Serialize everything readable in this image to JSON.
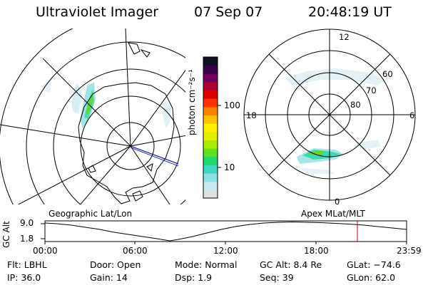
{
  "header": {
    "instrument": "Ultraviolet Imager",
    "date": "07 Sep 07",
    "time": "20:48:19 UT"
  },
  "geo_panel": {
    "label": "Geographic Lat/Lon"
  },
  "polar_panel": {
    "label": "Apex  MLat/MLT",
    "mlt_labels": {
      "top": "12",
      "left": "18",
      "right": "6",
      "bottom": "0"
    },
    "lat_labels": [
      "60",
      "70",
      "80"
    ]
  },
  "colorbar": {
    "unit_label": "photon cm⁻²s⁻¹",
    "ticks": [
      "100",
      "10"
    ],
    "colors": [
      "#e0e0e0",
      "#c8e8f0",
      "#90e0e8",
      "#40d8c0",
      "#20d870",
      "#60e020",
      "#a8ec00",
      "#e0f000",
      "#fff000",
      "#ffc000",
      "#ff8000",
      "#ff3000",
      "#e00000",
      "#b00030",
      "#700060",
      "#3a0050",
      "#101020"
    ]
  },
  "timeline": {
    "ylabel": "GC Alt",
    "ytick_top": "9.0",
    "ytick_bottom": "1.8",
    "xticks": [
      "00:00",
      "06:00",
      "12:00",
      "18:00",
      "23:59"
    ],
    "marker_color": "#d00000"
  },
  "info": {
    "flt": "Flt: LBHL",
    "door": "Door: Open",
    "mode": "Mode: Normal",
    "gc_alt": "GC Alt: 8.4 Re",
    "glat": "GLat: −74.6",
    "ip": "IP: 36.0",
    "gain": "Gain: 14",
    "dsp": "Dsp:    1.9",
    "seq": "Seq: 39",
    "glon": "GLon:  62.0"
  }
}
